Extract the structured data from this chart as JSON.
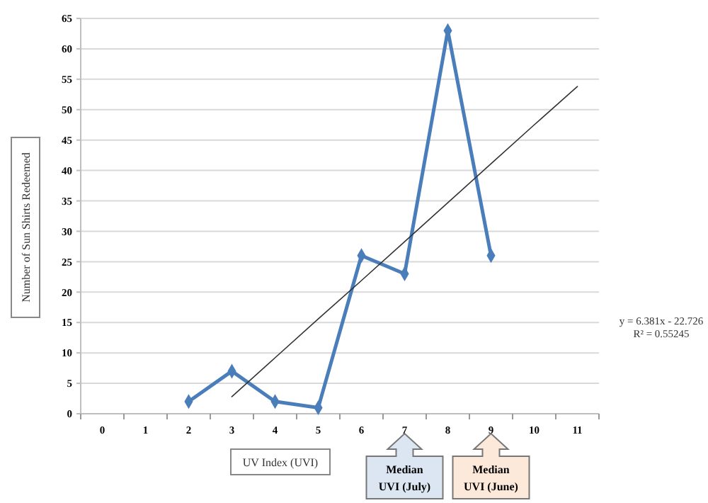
{
  "chart_data": {
    "type": "line",
    "xlabel": "UV Index (UVI)",
    "ylabel": "Number of Sun Shirts Redeemed",
    "categories": [
      "0",
      "1",
      "2",
      "3",
      "4",
      "5",
      "6",
      "7",
      "8",
      "9",
      "10",
      "11"
    ],
    "series": [
      {
        "color": "#4a7ebb",
        "values": [
          null,
          null,
          2,
          7,
          2,
          1,
          26,
          23,
          63,
          26,
          null,
          null
        ],
        "marker": "diamond"
      },
      {
        "type": "line",
        "color": "#333333",
        "values": [
          null,
          null,
          null,
          2.8,
          9.2,
          15.6,
          21.9,
          28.3,
          34.7,
          41.1,
          47.5,
          53.8
        ],
        "marker": "none"
      }
    ],
    "ylim": [
      0,
      65
    ],
    "yticks": [
      0,
      5,
      10,
      15,
      20,
      25,
      30,
      35,
      40,
      45,
      50,
      55,
      60,
      65
    ],
    "grid": "y",
    "annotations": [
      "y = 6.381x - 22.726",
      "R² = 0.55245",
      "Median UVI (July)",
      "Median UVI (June)"
    ]
  }
}
